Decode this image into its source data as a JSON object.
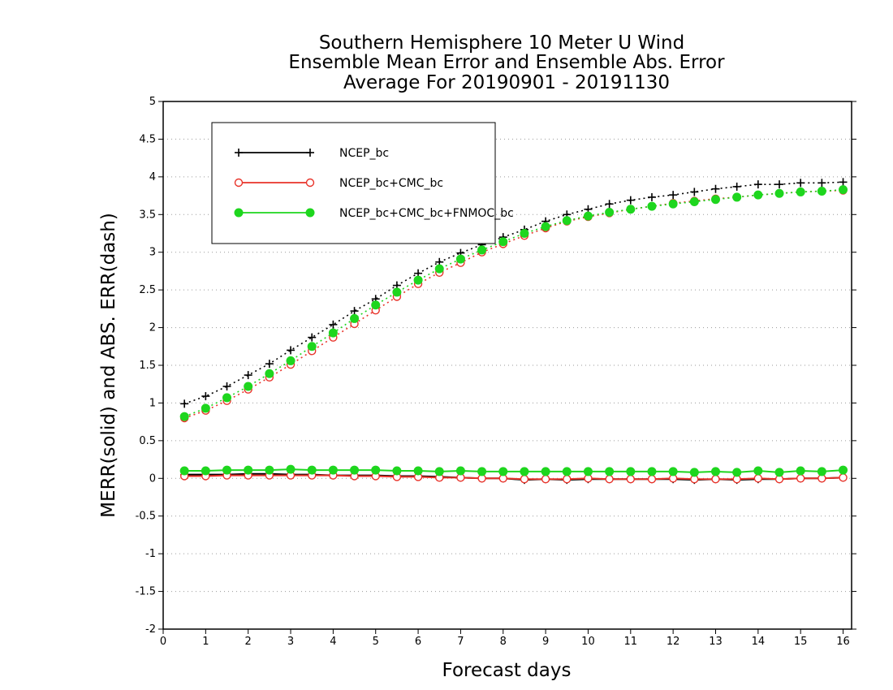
{
  "chart_data": {
    "type": "line",
    "title": [
      "Southern Hemisphere 10 Meter U Wind",
      "Ensemble Mean Error and Ensemble Abs. Error",
      "Average For 20190901 - 20191130"
    ],
    "xlabel": "Forecast days",
    "ylabel": "MERR(solid) and ABS. ERR(dash)",
    "xlim": [
      0,
      16.2
    ],
    "ylim": [
      -2,
      5
    ],
    "xticks": [
      0,
      1,
      2,
      3,
      4,
      5,
      6,
      7,
      8,
      9,
      10,
      11,
      12,
      13,
      14,
      15,
      16
    ],
    "yticks": [
      -2,
      -1.5,
      -1,
      -0.5,
      0,
      0.5,
      1,
      1.5,
      2,
      2.5,
      3,
      3.5,
      4,
      4.5,
      5
    ],
    "ytick_labels": [
      "-2",
      "-1.5",
      "-1",
      "-0.5",
      "0",
      "0.5",
      "1",
      "1.5",
      "2",
      "2.5",
      "3",
      "3.5",
      "4",
      "4.5",
      "5"
    ],
    "grid": "horizontal dotted",
    "legend_position": "top-left",
    "x": [
      0.5,
      1,
      1.5,
      2,
      2.5,
      3,
      3.5,
      4,
      4.5,
      5,
      5.5,
      6,
      6.5,
      7,
      7.5,
      8,
      8.5,
      9,
      9.5,
      10,
      10.5,
      11,
      11.5,
      12,
      12.5,
      13,
      13.5,
      14,
      14.5,
      15,
      15.5,
      16
    ],
    "series": [
      {
        "name": "NCEP_bc",
        "color": "#000000",
        "marker": "plus",
        "abs_err": [
          0.99,
          1.09,
          1.22,
          1.37,
          1.52,
          1.7,
          1.87,
          2.04,
          2.22,
          2.38,
          2.56,
          2.72,
          2.87,
          2.99,
          3.1,
          3.2,
          3.3,
          3.41,
          3.5,
          3.57,
          3.64,
          3.69,
          3.73,
          3.76,
          3.8,
          3.84,
          3.87,
          3.9,
          3.9,
          3.92,
          3.92,
          3.93
        ],
        "mean_err": [
          0.05,
          0.05,
          0.05,
          0.06,
          0.06,
          0.05,
          0.05,
          0.04,
          0.04,
          0.04,
          0.03,
          0.03,
          0.02,
          0.01,
          0.0,
          0.0,
          -0.02,
          -0.01,
          -0.02,
          -0.01,
          -0.01,
          -0.01,
          -0.01,
          -0.01,
          -0.02,
          -0.01,
          -0.02,
          -0.01,
          -0.01,
          0.0,
          0.0,
          0.01
        ]
      },
      {
        "name": "NCEP_bc+CMC_bc",
        "color": "#e8332a",
        "marker": "open-circle",
        "abs_err": [
          0.8,
          0.9,
          1.03,
          1.18,
          1.34,
          1.51,
          1.69,
          1.87,
          2.05,
          2.23,
          2.41,
          2.58,
          2.73,
          2.86,
          3.0,
          3.11,
          3.22,
          3.32,
          3.41,
          3.47,
          3.52,
          3.57,
          3.61,
          3.65,
          3.68,
          3.71,
          3.73,
          3.76,
          3.78,
          3.8,
          3.81,
          3.82
        ],
        "mean_err": [
          0.03,
          0.03,
          0.04,
          0.04,
          0.04,
          0.04,
          0.04,
          0.04,
          0.03,
          0.03,
          0.02,
          0.02,
          0.01,
          0.01,
          0.0,
          0.0,
          -0.01,
          -0.01,
          -0.01,
          0.0,
          -0.01,
          -0.01,
          -0.01,
          0.0,
          -0.01,
          -0.01,
          -0.01,
          0.0,
          -0.01,
          0.0,
          0.0,
          0.01
        ]
      },
      {
        "name": "NCEP_bc+CMC_bc+FNMOC_bc",
        "color": "#1ed61e",
        "marker": "filled-circle",
        "abs_err": [
          0.82,
          0.93,
          1.07,
          1.22,
          1.39,
          1.56,
          1.75,
          1.93,
          2.12,
          2.3,
          2.47,
          2.63,
          2.78,
          2.91,
          3.03,
          3.14,
          3.25,
          3.34,
          3.42,
          3.48,
          3.53,
          3.57,
          3.61,
          3.64,
          3.67,
          3.7,
          3.73,
          3.76,
          3.78,
          3.8,
          3.81,
          3.83
        ],
        "mean_err": [
          0.1,
          0.1,
          0.11,
          0.11,
          0.11,
          0.12,
          0.11,
          0.11,
          0.11,
          0.11,
          0.1,
          0.1,
          0.09,
          0.1,
          0.09,
          0.09,
          0.09,
          0.09,
          0.09,
          0.09,
          0.09,
          0.09,
          0.09,
          0.09,
          0.08,
          0.09,
          0.08,
          0.1,
          0.08,
          0.1,
          0.09,
          0.11
        ]
      }
    ]
  }
}
